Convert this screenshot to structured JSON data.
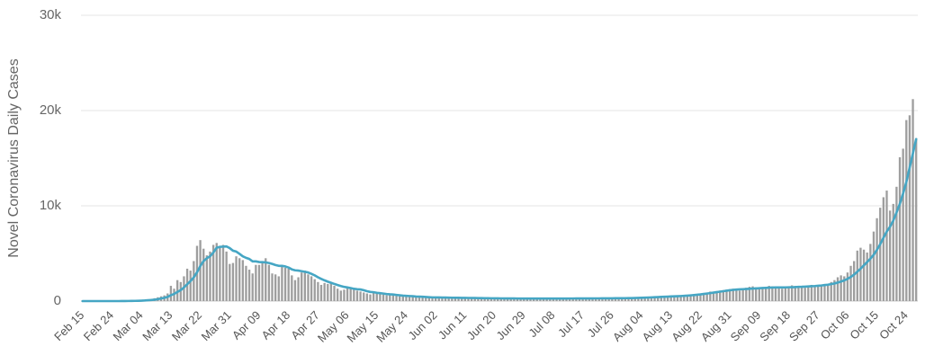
{
  "chart_data": {
    "type": "bar",
    "y_axis_title": "Novel Coronavirus Daily Cases",
    "ylim": [
      0,
      30000
    ],
    "yticks": [
      0,
      {
        "value": 10000,
        "label": "10k"
      },
      {
        "value": 20000,
        "label": "20k"
      },
      {
        "value": 30000,
        "label": "30k"
      }
    ],
    "grid": true,
    "categories": [
      "Feb 15",
      null,
      null,
      null,
      null,
      null,
      null,
      null,
      null,
      "Feb 24",
      null,
      null,
      null,
      null,
      null,
      null,
      null,
      null,
      "Mar 04",
      null,
      null,
      null,
      null,
      null,
      null,
      null,
      null,
      "Mar 13",
      null,
      null,
      null,
      null,
      null,
      null,
      null,
      null,
      "Mar 22",
      null,
      null,
      null,
      null,
      null,
      null,
      null,
      null,
      "Mar 31",
      null,
      null,
      null,
      null,
      null,
      null,
      null,
      null,
      "Apr 09",
      null,
      null,
      null,
      null,
      null,
      null,
      null,
      null,
      "Apr 18",
      null,
      null,
      null,
      null,
      null,
      null,
      null,
      null,
      "Apr 27",
      null,
      null,
      null,
      null,
      null,
      null,
      null,
      null,
      "May 06",
      null,
      null,
      null,
      null,
      null,
      null,
      null,
      null,
      "May 15",
      null,
      null,
      null,
      null,
      null,
      null,
      null,
      null,
      "May 24",
      null,
      null,
      null,
      null,
      null,
      null,
      null,
      null,
      "Jun 02",
      null,
      null,
      null,
      null,
      null,
      null,
      null,
      null,
      "Jun 11",
      null,
      null,
      null,
      null,
      null,
      null,
      null,
      null,
      "Jun 20",
      null,
      null,
      null,
      null,
      null,
      null,
      null,
      null,
      "Jun 29",
      null,
      null,
      null,
      null,
      null,
      null,
      null,
      null,
      "Jul 08",
      null,
      null,
      null,
      null,
      null,
      null,
      null,
      null,
      "Jul 17",
      null,
      null,
      null,
      null,
      null,
      null,
      null,
      null,
      "Jul 26",
      null,
      null,
      null,
      null,
      null,
      null,
      null,
      null,
      "Aug 04",
      null,
      null,
      null,
      null,
      null,
      null,
      null,
      null,
      "Aug 13",
      null,
      null,
      null,
      null,
      null,
      null,
      null,
      null,
      "Aug 22",
      null,
      null,
      null,
      null,
      null,
      null,
      null,
      null,
      "Aug 31",
      null,
      null,
      null,
      null,
      null,
      null,
      null,
      null,
      "Sep 09",
      null,
      null,
      null,
      null,
      null,
      null,
      null,
      null,
      "Sep 18",
      null,
      null,
      null,
      null,
      null,
      null,
      null,
      null,
      "Sep 27",
      null,
      null,
      null,
      null,
      null,
      null,
      null,
      null,
      "Oct 06",
      null,
      null,
      null,
      null,
      null,
      null,
      null,
      null,
      "Oct 15",
      null,
      null,
      null,
      null,
      null,
      null,
      null,
      null,
      "Oct 24",
      null,
      null,
      null
    ],
    "series": [
      {
        "type": "bar",
        "color": "#9e9e9e",
        "values": [
          0,
          0,
          0,
          0,
          0,
          0,
          0,
          0,
          0,
          0,
          3,
          5,
          20,
          18,
          40,
          30,
          60,
          50,
          90,
          140,
          190,
          230,
          300,
          400,
          500,
          600,
          800,
          1600,
          1300,
          2200,
          2000,
          2600,
          3400,
          3200,
          4200,
          5800,
          6400,
          5500,
          4800,
          5200,
          5900,
          6100,
          5800,
          5900,
          5200,
          3900,
          4000,
          4700,
          4500,
          4300,
          3700,
          3300,
          2900,
          3800,
          3800,
          4200,
          4500,
          3800,
          2900,
          2800,
          2600,
          3600,
          3500,
          3400,
          2700,
          2200,
          2500,
          3000,
          3200,
          2800,
          2600,
          2300,
          2000,
          1700,
          1900,
          1800,
          1900,
          1600,
          1300,
          1100,
          1200,
          1400,
          1300,
          1200,
          1100,
          1000,
          900,
          800,
          700,
          900,
          800,
          800,
          700,
          600,
          650,
          700,
          600,
          500,
          550,
          500,
          450,
          500,
          400,
          450,
          400,
          350,
          400,
          350,
          400,
          380,
          350,
          300,
          320,
          400,
          350,
          330,
          300,
          280,
          320,
          350,
          300,
          330,
          300,
          280,
          250,
          300,
          320,
          300,
          280,
          260,
          250,
          270,
          300,
          280,
          250,
          240,
          260,
          250,
          270,
          300,
          280,
          260,
          250,
          240,
          260,
          280,
          300,
          290,
          270,
          260,
          250,
          270,
          290,
          300,
          280,
          260,
          270,
          290,
          300,
          310,
          290,
          280,
          300,
          320,
          310,
          300,
          330,
          340,
          350,
          360,
          340,
          380,
          400,
          420,
          400,
          450,
          480,
          500,
          470,
          460,
          500,
          520,
          540,
          500,
          560,
          600,
          650,
          700,
          750,
          800,
          850,
          900,
          1000,
          950,
          1050,
          1100,
          1150,
          1200,
          1250,
          1300,
          1250,
          1100,
          1150,
          1400,
          1500,
          1550,
          1450,
          1400,
          1350,
          1500,
          1600,
          1550,
          1450,
          1350,
          1300,
          1400,
          1550,
          1650,
          1600,
          1500,
          1450,
          1400,
          1550,
          1700,
          1650,
          1600,
          1700,
          1800,
          1750,
          2000,
          2200,
          2500,
          2700,
          2600,
          3000,
          3700,
          4200,
          5300,
          5600,
          5400,
          5100,
          6000,
          7300,
          8700,
          9800,
          10900,
          11600,
          9500,
          10200,
          12000,
          15100,
          16000,
          19000,
          19500,
          21200,
          17100
        ]
      },
      {
        "type": "line",
        "color": "#45a6c4",
        "values": [
          0,
          0,
          0,
          0,
          0,
          0,
          0,
          0,
          0,
          0,
          0,
          1,
          4,
          7,
          12,
          17,
          25,
          32,
          44,
          62,
          90,
          113,
          150,
          200,
          270,
          340,
          440,
          620,
          750,
          950,
          1150,
          1430,
          1770,
          2100,
          2490,
          3020,
          3680,
          4200,
          4500,
          4700,
          5100,
          5600,
          5690,
          5720,
          5740,
          5560,
          5290,
          5200,
          4960,
          4700,
          4540,
          4420,
          4170,
          4170,
          4100,
          4090,
          4060,
          4000,
          3900,
          3790,
          3700,
          3700,
          3640,
          3520,
          3330,
          3230,
          3200,
          3140,
          3080,
          3000,
          2860,
          2700,
          2500,
          2330,
          2180,
          2040,
          1920,
          1800,
          1690,
          1580,
          1490,
          1430,
          1370,
          1290,
          1250,
          1220,
          1140,
          1040,
          960,
          930,
          870,
          830,
          790,
          740,
          710,
          690,
          650,
          610,
          570,
          550,
          530,
          510,
          480,
          470,
          450,
          430,
          410,
          390,
          385,
          380,
          375,
          370,
          360,
          355,
          350,
          345,
          340,
          335,
          330,
          325,
          320,
          315,
          310,
          305,
          300,
          295,
          290,
          285,
          282,
          280,
          278,
          276,
          274,
          272,
          270,
          268,
          266,
          265,
          264,
          263,
          263,
          262,
          262,
          262,
          263,
          264,
          266,
          268,
          270,
          271,
          272,
          273,
          274,
          275,
          276,
          278,
          280,
          282,
          284,
          286,
          288,
          290,
          293,
          296,
          299,
          302,
          306,
          310,
          315,
          325,
          335,
          345,
          360,
          375,
          390,
          405,
          420,
          440,
          455,
          470,
          485,
          500,
          515,
          530,
          550,
          575,
          600,
          630,
          665,
          700,
          745,
          790,
          840,
          890,
          940,
          990,
          1040,
          1090,
          1140,
          1180,
          1210,
          1230,
          1250,
          1270,
          1290,
          1310,
          1330,
          1350,
          1370,
          1390,
          1410,
          1420,
          1430,
          1430,
          1430,
          1440,
          1450,
          1460,
          1470,
          1490,
          1500,
          1520,
          1540,
          1560,
          1580,
          1610,
          1640,
          1680,
          1720,
          1780,
          1850,
          1940,
          2050,
          2170,
          2330,
          2530,
          2780,
          3080,
          3400,
          3760,
          4100,
          4450,
          4860,
          5380,
          5970,
          6650,
          7300,
          7800,
          8450,
          9300,
          10200,
          11300,
          12500,
          14000,
          15500,
          17000
        ]
      }
    ]
  }
}
